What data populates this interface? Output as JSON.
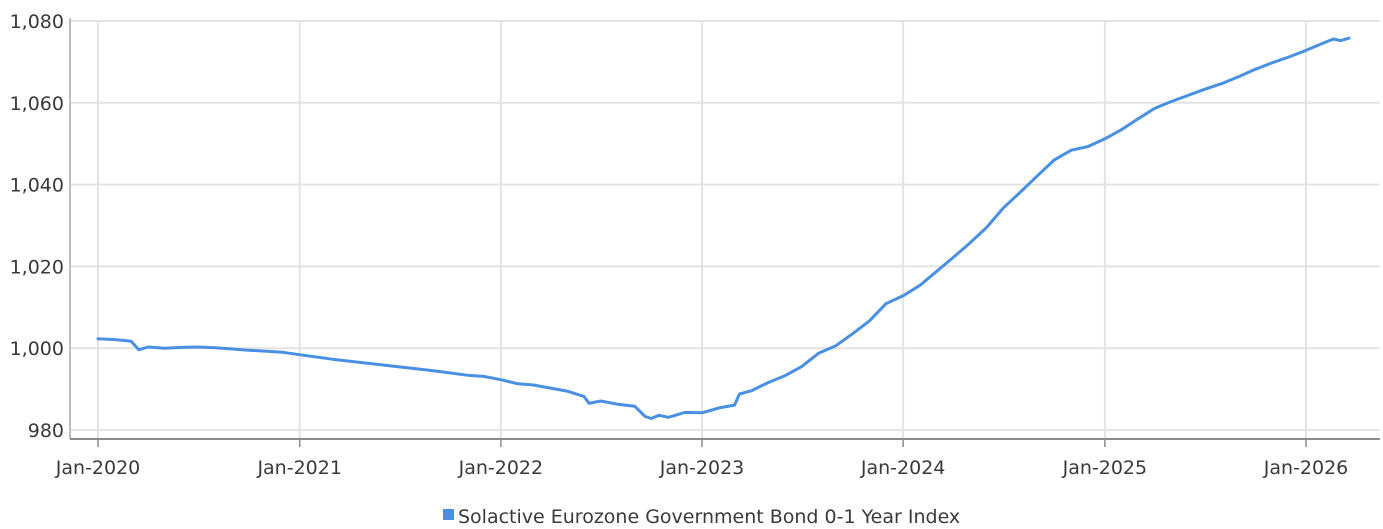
{
  "chart_data": {
    "type": "line",
    "title": "",
    "xlabel": "",
    "ylabel": "",
    "ylim": [
      980,
      1080
    ],
    "yticks": [
      980,
      1000,
      1020,
      1040,
      1060,
      1080
    ],
    "ytick_labels": [
      "980",
      "1,000",
      "1,020",
      "1,040",
      "1,060",
      "1,080"
    ],
    "xticks": [
      "2020-01-01",
      "2021-01-01",
      "2022-01-01",
      "2023-01-01",
      "2024-01-01",
      "2025-01-01",
      "2026-01-01"
    ],
    "xtick_labels": [
      "Jan-2020",
      "Jan-2021",
      "Jan-2022",
      "Jan-2023",
      "Jan-2024",
      "Jan-2025",
      "Jan-2026"
    ],
    "grid": true,
    "legend_position": "bottom-center",
    "series": [
      {
        "name": "Solactive Eurozone Government Bond 0-1 Year Index",
        "color": "#4a90e2",
        "points": [
          [
            "2020-01-01",
            1002.3
          ],
          [
            "2020-02-01",
            1002.1
          ],
          [
            "2020-03-01",
            1001.7
          ],
          [
            "2020-03-15",
            999.6
          ],
          [
            "2020-04-01",
            1000.3
          ],
          [
            "2020-05-01",
            1000.0
          ],
          [
            "2020-06-01",
            1000.2
          ],
          [
            "2020-07-01",
            1000.3
          ],
          [
            "2020-08-01",
            1000.1
          ],
          [
            "2020-10-01",
            999.5
          ],
          [
            "2020-12-01",
            999.0
          ],
          [
            "2021-01-01",
            998.4
          ],
          [
            "2021-03-01",
            997.3
          ],
          [
            "2021-06-01",
            995.9
          ],
          [
            "2021-09-01",
            994.5
          ],
          [
            "2021-11-01",
            993.4
          ],
          [
            "2021-12-01",
            993.1
          ],
          [
            "2022-01-01",
            992.3
          ],
          [
            "2022-02-01",
            991.3
          ],
          [
            "2022-03-01",
            991.0
          ],
          [
            "2022-05-01",
            989.5
          ],
          [
            "2022-06-01",
            988.2
          ],
          [
            "2022-06-10",
            986.5
          ],
          [
            "2022-07-01",
            987.1
          ],
          [
            "2022-08-01",
            986.3
          ],
          [
            "2022-09-01",
            985.8
          ],
          [
            "2022-09-20",
            983.3
          ],
          [
            "2022-10-01",
            982.8
          ],
          [
            "2022-10-15",
            983.6
          ],
          [
            "2022-11-01",
            983.1
          ],
          [
            "2022-12-01",
            984.3
          ],
          [
            "2023-01-01",
            984.2
          ],
          [
            "2023-02-01",
            985.4
          ],
          [
            "2023-03-01",
            986.1
          ],
          [
            "2023-03-10",
            988.8
          ],
          [
            "2023-04-01",
            989.6
          ],
          [
            "2023-05-01",
            991.6
          ],
          [
            "2023-06-01",
            993.3
          ],
          [
            "2023-07-01",
            995.5
          ],
          [
            "2023-08-01",
            998.8
          ],
          [
            "2023-09-01",
            1000.6
          ],
          [
            "2023-10-01",
            1003.5
          ],
          [
            "2023-11-01",
            1006.7
          ],
          [
            "2023-12-01",
            1010.9
          ],
          [
            "2024-01-01",
            1012.8
          ],
          [
            "2024-02-01",
            1015.4
          ],
          [
            "2024-03-01",
            1018.7
          ],
          [
            "2024-04-01",
            1022.2
          ],
          [
            "2024-05-01",
            1025.7
          ],
          [
            "2024-06-01",
            1029.6
          ],
          [
            "2024-07-01",
            1034.3
          ],
          [
            "2024-08-01",
            1038.2
          ],
          [
            "2024-09-01",
            1042.2
          ],
          [
            "2024-10-01",
            1046.0
          ],
          [
            "2024-11-01",
            1048.4
          ],
          [
            "2024-12-01",
            1049.3
          ],
          [
            "2025-01-01",
            1051.2
          ],
          [
            "2025-02-01",
            1053.5
          ],
          [
            "2025-03-01",
            1056.0
          ],
          [
            "2025-04-01",
            1058.6
          ],
          [
            "2025-05-01",
            1060.3
          ],
          [
            "2025-06-01",
            1061.8
          ],
          [
            "2025-07-01",
            1063.3
          ],
          [
            "2025-08-01",
            1064.7
          ],
          [
            "2025-09-01",
            1066.4
          ],
          [
            "2025-10-01",
            1068.2
          ],
          [
            "2025-11-01",
            1069.8
          ],
          [
            "2025-12-01",
            1071.2
          ],
          [
            "2026-01-01",
            1072.8
          ],
          [
            "2026-02-01",
            1074.6
          ],
          [
            "2026-02-20",
            1075.6
          ],
          [
            "2026-03-05",
            1075.2
          ],
          [
            "2026-03-20",
            1075.8
          ]
        ]
      }
    ]
  }
}
